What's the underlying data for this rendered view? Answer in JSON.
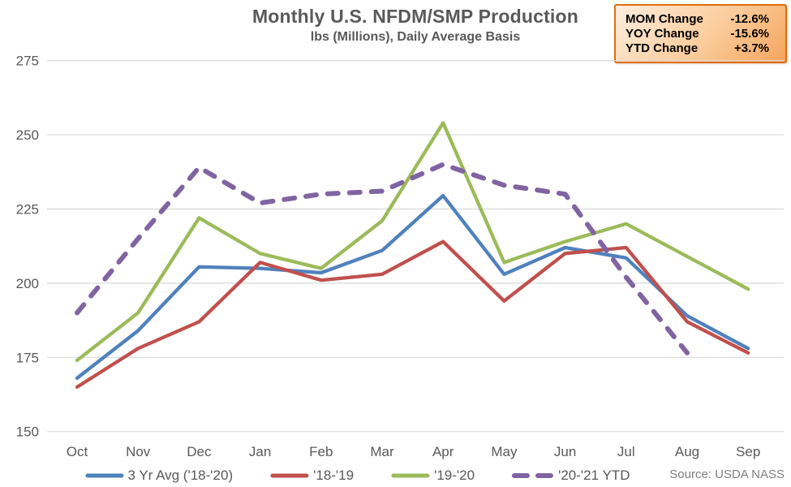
{
  "chart_data": {
    "type": "line",
    "title": "Monthly U.S. NFDM/SMP Production",
    "subtitle": "lbs (Millions), Daily Average Basis",
    "categories": [
      "Oct",
      "Nov",
      "Dec",
      "Jan",
      "Feb",
      "Mar",
      "Apr",
      "May",
      "Jun",
      "Jul",
      "Aug",
      "Sep"
    ],
    "series": [
      {
        "id": "3yr-avg",
        "name": "3 Yr Avg ('18-'20)",
        "color": "#4F81BD",
        "dashed": false,
        "values": [
          168,
          184,
          205.5,
          205,
          203.5,
          211,
          229.5,
          203,
          212,
          208.5,
          189,
          178
        ]
      },
      {
        "id": "18-19",
        "name": "'18-'19",
        "color": "#C0504D",
        "dashed": false,
        "values": [
          165,
          178,
          187,
          207,
          201,
          203,
          214,
          194,
          210,
          212,
          187,
          176.5
        ]
      },
      {
        "id": "19-20",
        "name": "'19-'20",
        "color": "#9BBB59",
        "dashed": false,
        "values": [
          174,
          190,
          222,
          210,
          205,
          221,
          254,
          207,
          214,
          220,
          209,
          198
        ]
      },
      {
        "id": "20-21-ytd",
        "name": "'20-'21 YTD",
        "color": "#8064A2",
        "dashed": true,
        "values": [
          190,
          215,
          239,
          227,
          230,
          231,
          240,
          233,
          230,
          202,
          176.5,
          null
        ]
      }
    ],
    "ylim": [
      150,
      275
    ],
    "yticks": [
      150,
      175,
      200,
      225,
      250,
      275
    ],
    "grid": true,
    "legend_position": "bottom"
  },
  "stats_box": {
    "rows": [
      {
        "label": "MOM Change",
        "value": "-12.6%"
      },
      {
        "label": "YOY Change",
        "value": "-15.6%"
      },
      {
        "label": "YTD Change",
        "value": "+3.7%"
      }
    ],
    "border_color": "#E26C0A",
    "bg_top": "#FDEEDF",
    "bg_bottom": "#F5A45C"
  },
  "source": "Source: USDA NASS",
  "colors": {
    "title_text": "#595959",
    "axis_text": "#595959",
    "legend_text": "#595959",
    "source_text": "#7F7F7F",
    "gridline": "#D9D9D9",
    "background": "#FFFFFF"
  }
}
